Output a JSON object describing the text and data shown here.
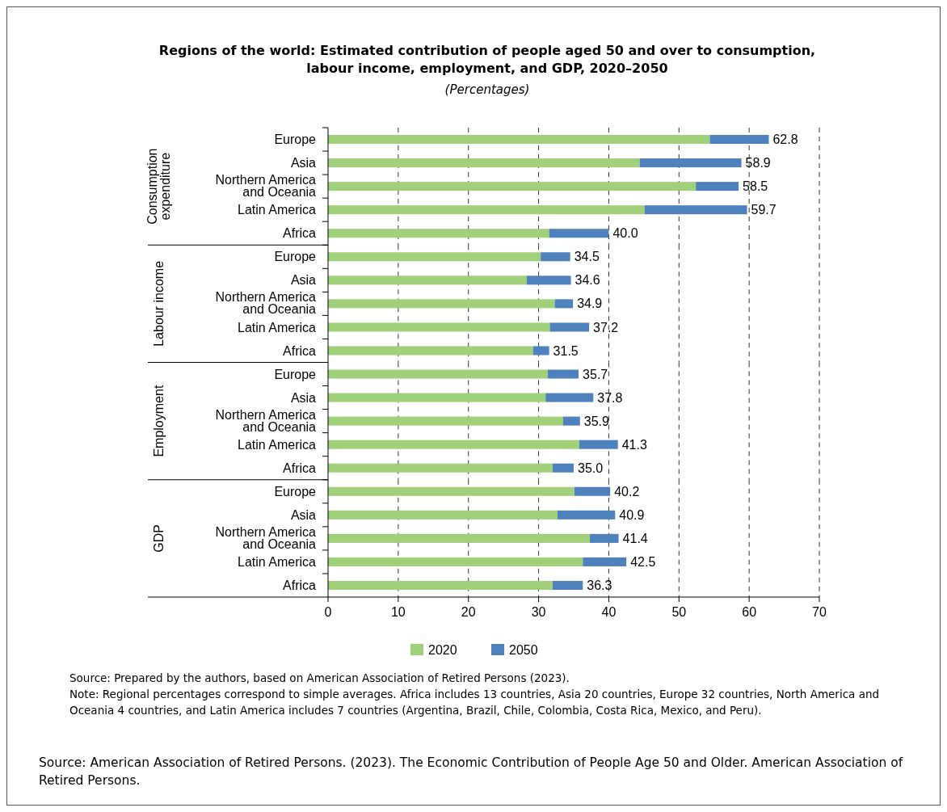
{
  "chart_data": [
    {
      "type": "bar",
      "orientation": "horizontal",
      "stacked": true,
      "title": "Regions of the world: Estimated contribution of people aged 50 and over to consumption, labour income, employment, and GDP, 2020–2050",
      "subtitle": "(Percentages)",
      "ylabel": "Consumption expenditure",
      "categories": [
        "Europe",
        "Asia",
        "Northern America and Oceania",
        "Latin America",
        "Africa"
      ],
      "series": [
        {
          "color": "#a0d07a",
          "values": [
            54.4,
            44.4,
            52.4,
            45.1,
            31.5
          ]
        },
        {
          "color": "#4f81bd",
          "values": [
            8.4,
            14.5,
            6.1,
            14.6,
            8.5
          ]
        }
      ],
      "totals": [
        "62.8",
        "58.9",
        "58.5",
        "59.7",
        "40.0"
      ],
      "xlim": [
        0,
        70
      ],
      "xticks": [
        0,
        10,
        20,
        30,
        40,
        50,
        60,
        70
      ],
      "grid": "x",
      "tick_labels": "y"
    },
    {
      "type": "bar",
      "orientation": "horizontal",
      "stacked": true,
      "ylabel": "Labour income",
      "categories": [
        "Europe",
        "Asia",
        "Northern America and Oceania",
        "Latin America",
        "Africa"
      ],
      "series": [
        {
          "color": "#a0d07a",
          "values": [
            30.3,
            28.3,
            32.3,
            31.6,
            29.2
          ]
        },
        {
          "color": "#4f81bd",
          "values": [
            4.2,
            6.3,
            2.6,
            5.6,
            2.3
          ]
        }
      ],
      "totals": [
        "34.5",
        "34.6",
        "34.9",
        "37.2",
        "31.5"
      ],
      "xlim": [
        0,
        70
      ],
      "xticks": [
        0,
        10,
        20,
        30,
        40,
        50,
        60,
        70
      ],
      "grid": "x",
      "tick_labels": "y"
    },
    {
      "type": "bar",
      "orientation": "horizontal",
      "stacked": true,
      "ylabel": "Employment",
      "categories": [
        "Europe",
        "Asia",
        "Northern America and Oceania",
        "Latin America",
        "Africa"
      ],
      "series": [
        {
          "color": "#a0d07a",
          "values": [
            31.3,
            31.0,
            33.5,
            35.8,
            32.0
          ]
        },
        {
          "color": "#4f81bd",
          "values": [
            4.4,
            6.8,
            2.4,
            5.5,
            3.0
          ]
        }
      ],
      "totals": [
        "35.7",
        "37.8",
        "35.9",
        "41.3",
        "35.0"
      ],
      "xlim": [
        0,
        70
      ],
      "xticks": [
        0,
        10,
        20,
        30,
        40,
        50,
        60,
        70
      ],
      "grid": "x",
      "tick_labels": "y"
    },
    {
      "type": "bar",
      "orientation": "horizontal",
      "stacked": true,
      "ylabel": "GDP",
      "categories": [
        "Europe",
        "Asia",
        "Northern America and Oceania",
        "Latin America",
        "Africa"
      ],
      "series": [
        {
          "name": "2020",
          "color": "#a0d07a",
          "values": [
            35.1,
            32.7,
            37.3,
            36.3,
            32.0
          ]
        },
        {
          "name": "2050",
          "color": "#4f81bd",
          "values": [
            5.1,
            8.2,
            4.1,
            6.2,
            4.3
          ]
        }
      ],
      "totals": [
        "40.2",
        "40.9",
        "41.4",
        "42.5",
        "36.3"
      ],
      "xlim": [
        0,
        70
      ],
      "xticks": [
        0,
        10,
        20,
        30,
        40,
        50,
        60,
        70
      ],
      "grid": "x",
      "legend": "bottom",
      "annotations": [
        "Source: Prepared by the authors, based on American Association of Retired Persons (2023).",
        "Note: Regional percentages correspond to simple averages. Africa includes 13 countries, Asia 20 countries, Europe 32 countries, North America and Oceania 4 countries, and Latin America includes 7 countries (Argentina, Brazil, Chile, Colombia, Costa Rica, Mexico, and Peru).",
        "Source: American Association of Retired Persons. (2023). The Economic Contribution of People Age 50 and Older. American Association of Retired Persons."
      ]
    }
  ]
}
